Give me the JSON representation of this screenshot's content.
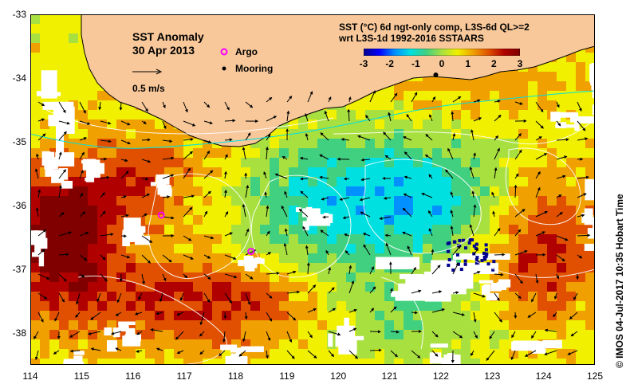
{
  "map": {
    "title": "SST Anomaly",
    "date": "30 Apr 2013",
    "scale_label": "0.5 m/s",
    "legend": {
      "argo_label": "Argo",
      "mooring_label": "Mooring",
      "argo_color": "#ff00ff",
      "mooring_color": "#000000"
    },
    "product_line1": "SST (°C) 6d ngt-only comp, L3S-6d QL>=2",
    "product_line2": "wrt L3S-1d 1992-2016 SSTAARS",
    "credit": "© IMOS 04-Jul-2017 10:35 Hobart Time",
    "land_color": "#f8c89a",
    "colorbar": {
      "ticks": [
        "-3",
        "-2",
        "-1",
        "0",
        "1",
        "2",
        "3"
      ],
      "range": [
        -3,
        3
      ],
      "colors": [
        "#00008c",
        "#0000ff",
        "#0090ff",
        "#00e0e0",
        "#40d080",
        "#a8e040",
        "#f0f000",
        "#f0a000",
        "#e05000",
        "#b00000",
        "#800000"
      ]
    },
    "x_ticks": [
      "114",
      "115",
      "116",
      "117",
      "118",
      "119",
      "120",
      "121",
      "122",
      "123",
      "124",
      "125"
    ],
    "y_ticks": [
      "-33",
      "-34",
      "-35",
      "-36",
      "-37",
      "-38"
    ],
    "lon_range": [
      114,
      125
    ],
    "lat_range": [
      -38.5,
      -33
    ],
    "argo_floats": [
      {
        "lon": 116.55,
        "lat": -36.15
      },
      {
        "lon": 118.3,
        "lat": -36.72
      }
    ],
    "moorings": [
      {
        "lon": 121.9,
        "lat": -33.95
      }
    ]
  }
}
